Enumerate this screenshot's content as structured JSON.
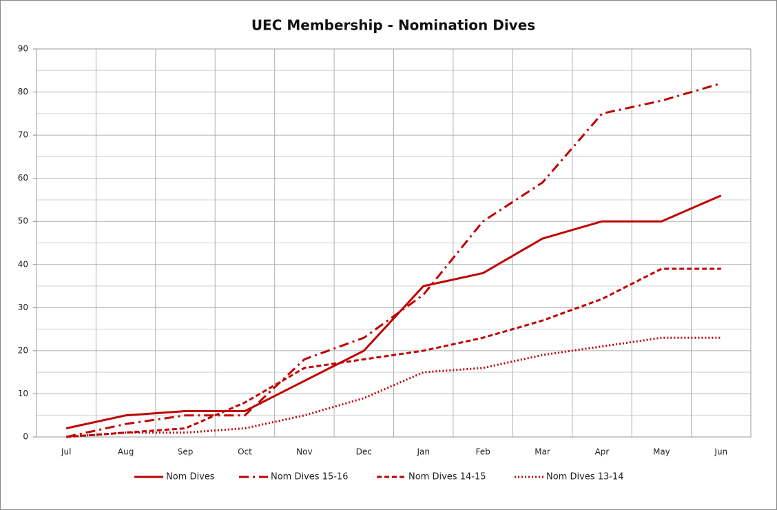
{
  "chart_data": {
    "type": "line",
    "title": "UEC Membership - Nomination Dives",
    "categories": [
      "Jul",
      "Aug",
      "Sep",
      "Oct",
      "Nov",
      "Dec",
      "Jan",
      "Feb",
      "Mar",
      "Apr",
      "May",
      "Jun"
    ],
    "series": [
      {
        "name": "Nom Dives",
        "color": "#c00000",
        "dash": "solid",
        "values": [
          2,
          5,
          6,
          6,
          13,
          20,
          35,
          38,
          46,
          50,
          50,
          56
        ]
      },
      {
        "name": "Nom Dives 15-16",
        "color": "#c00000",
        "dash": "dashdot",
        "values": [
          0,
          3,
          5,
          5,
          18,
          23,
          33,
          50,
          59,
          75,
          78,
          82
        ]
      },
      {
        "name": "Nom Dives 14-15",
        "color": "#c00000",
        "dash": "dash",
        "values": [
          0,
          1,
          2,
          8,
          16,
          18,
          20,
          23,
          27,
          32,
          39,
          39
        ]
      },
      {
        "name": "Nom Dives 13-14",
        "color": "#c00000",
        "dash": "dot",
        "values": [
          0,
          1,
          1,
          2,
          5,
          9,
          15,
          16,
          19,
          21,
          23,
          23
        ]
      }
    ],
    "ylim": [
      0,
      90
    ],
    "yticks": [
      0,
      10,
      20,
      30,
      40,
      50,
      60,
      70,
      80,
      90
    ],
    "grid": true,
    "legend": "bottom"
  }
}
